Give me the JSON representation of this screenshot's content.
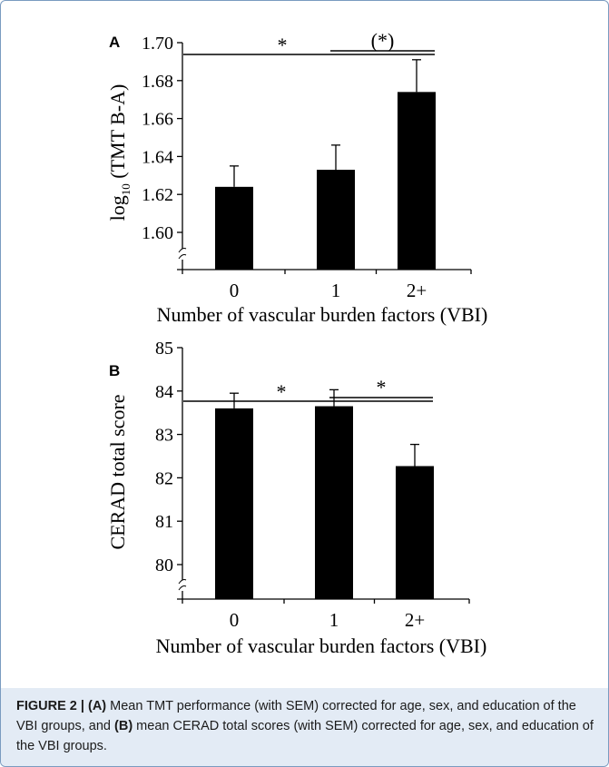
{
  "chart_data": [
    {
      "type": "bar",
      "panel_label": "A",
      "categories": [
        "0",
        "1",
        "2+"
      ],
      "values": [
        1.624,
        1.633,
        1.674
      ],
      "errors": [
        0.011,
        0.013,
        0.017
      ],
      "ylabel_main": "log",
      "ylabel_sub": "10",
      "ylabel_rest": " (TMT B-A)",
      "xlabel": "Number of vascular burden factors (VBI)",
      "yticks": [
        "1.60",
        "1.62",
        "1.64",
        "1.66",
        "1.68",
        "1.70"
      ],
      "ylim": [
        1.585,
        1.7
      ],
      "axis_break": true,
      "annotations": [
        {
          "from": 0,
          "to": 2,
          "label": "*",
          "double": false
        },
        {
          "from": 1,
          "to": 2,
          "label": "(*)",
          "double": true
        }
      ]
    },
    {
      "type": "bar",
      "panel_label": "B",
      "categories": [
        "0",
        "1",
        "2+"
      ],
      "values": [
        83.6,
        83.65,
        82.27
      ],
      "errors": [
        0.35,
        0.38,
        0.5
      ],
      "ylabel": "CERAD total score",
      "xlabel": "Number of vascular burden factors (VBI)",
      "yticks": [
        "80",
        "81",
        "82",
        "83",
        "84",
        "85"
      ],
      "ylim": [
        79.25,
        85
      ],
      "axis_break": true,
      "annotations": [
        {
          "from": 0,
          "to": 2,
          "label": "*",
          "double": false
        },
        {
          "from": 1,
          "to": 2,
          "label": "*",
          "double": true
        }
      ]
    }
  ],
  "caption": {
    "figure_label": "FIGURE 2 | ",
    "part_a_label": "(A)",
    "part_a_text": " Mean TMT performance (with SEM) corrected for age, sex, and education of the VBI groups, and ",
    "part_b_label": "(B)",
    "part_b_text": " mean CERAD total scores (with SEM) corrected for age, sex, and education of the VBI groups."
  },
  "colors": {
    "bar": "#000000",
    "caption_background": "#e3ebf5",
    "frame_border": "#7a9bc0"
  }
}
